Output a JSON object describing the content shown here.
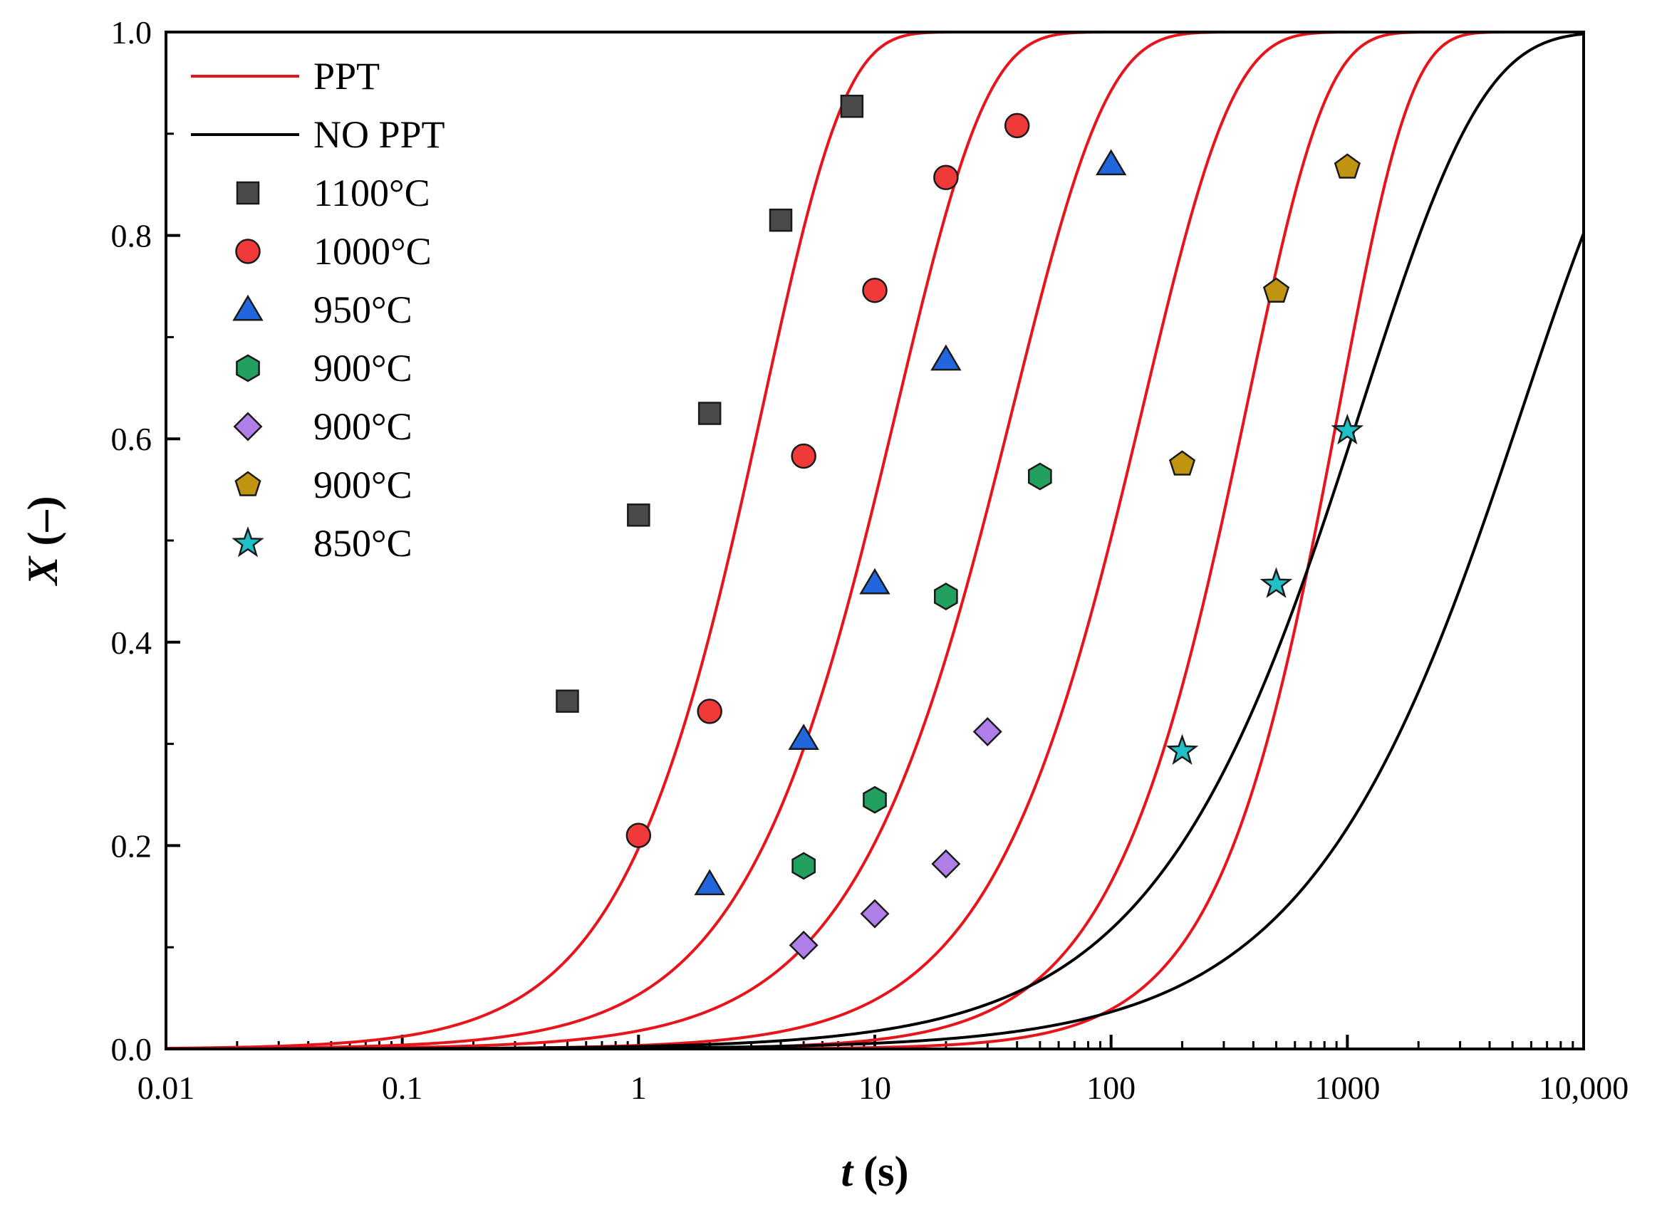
{
  "chart_data": {
    "type": "scatter",
    "xscale": "log",
    "xlim": [
      0.01,
      10000
    ],
    "ylim": [
      0.0,
      1.0
    ],
    "xlabel": {
      "var": "t",
      "unit": " (s)"
    },
    "ylabel": {
      "var": "X",
      "unit": " (–)"
    },
    "x_tick_labels": [
      "0.01",
      "0.1",
      "1",
      "10",
      "100",
      "1000",
      "10,000"
    ],
    "x_tick_values": [
      0.01,
      0.1,
      1,
      10,
      100,
      1000,
      10000
    ],
    "y_tick_labels": [
      "0.0",
      "0.2",
      "0.4",
      "0.6",
      "0.8",
      "1.0"
    ],
    "y_tick_values": [
      0.0,
      0.2,
      0.4,
      0.6,
      0.8,
      1.0
    ],
    "legend_position": "top-left",
    "curve_series": [
      {
        "name": "PPT",
        "color": "#e8141b",
        "fits": [
          {
            "k": 0.22,
            "n": 1.25
          },
          {
            "k": 0.055,
            "n": 1.15
          },
          {
            "k": 0.018,
            "n": 1.1
          },
          {
            "k": 0.0035,
            "n": 1.15
          },
          {
            "k": 0.00045,
            "n": 1.3
          },
          {
            "k": 5e-05,
            "n": 1.45
          }
        ]
      },
      {
        "name": "NO PPT",
        "color": "#000000",
        "fits": [
          {
            "k": 0.0025,
            "n": 0.85
          },
          {
            "k": 0.00085,
            "n": 0.82
          }
        ]
      }
    ],
    "scatter_series": [
      {
        "name": "1100°C",
        "marker": "square",
        "color": "#4a4a4a",
        "points": [
          [
            0.5,
            0.342
          ],
          [
            1,
            0.525
          ],
          [
            2,
            0.625
          ],
          [
            4,
            0.815
          ],
          [
            8,
            0.927
          ]
        ]
      },
      {
        "name": "1000°C",
        "marker": "circle",
        "color": "#f03a3a",
        "points": [
          [
            1,
            0.21
          ],
          [
            2,
            0.332
          ],
          [
            5,
            0.583
          ],
          [
            10,
            0.746
          ],
          [
            20,
            0.857
          ],
          [
            40,
            0.908
          ]
        ]
      },
      {
        "name": "950°C",
        "marker": "triangle",
        "color": "#2266dd",
        "points": [
          [
            2,
            0.162
          ],
          [
            5,
            0.305
          ],
          [
            10,
            0.458
          ],
          [
            20,
            0.678
          ],
          [
            100,
            0.87
          ]
        ]
      },
      {
        "name": "900°C",
        "marker": "hexagon",
        "color": "#22a060",
        "points": [
          [
            5,
            0.18
          ],
          [
            10,
            0.245
          ],
          [
            20,
            0.445
          ],
          [
            50,
            0.563
          ]
        ]
      },
      {
        "name": "900°C",
        "marker": "diamond",
        "color": "#b07ee8",
        "points": [
          [
            5,
            0.102
          ],
          [
            10,
            0.133
          ],
          [
            20,
            0.182
          ],
          [
            30,
            0.312
          ]
        ]
      },
      {
        "name": "900°C",
        "marker": "pentagon",
        "color": "#c09410",
        "points": [
          [
            200,
            0.575
          ],
          [
            500,
            0.745
          ],
          [
            1000,
            0.867
          ]
        ]
      },
      {
        "name": "850°C",
        "marker": "star",
        "color": "#20c0c8",
        "points": [
          [
            200,
            0.293
          ],
          [
            500,
            0.457
          ],
          [
            1000,
            0.608
          ]
        ]
      }
    ]
  }
}
